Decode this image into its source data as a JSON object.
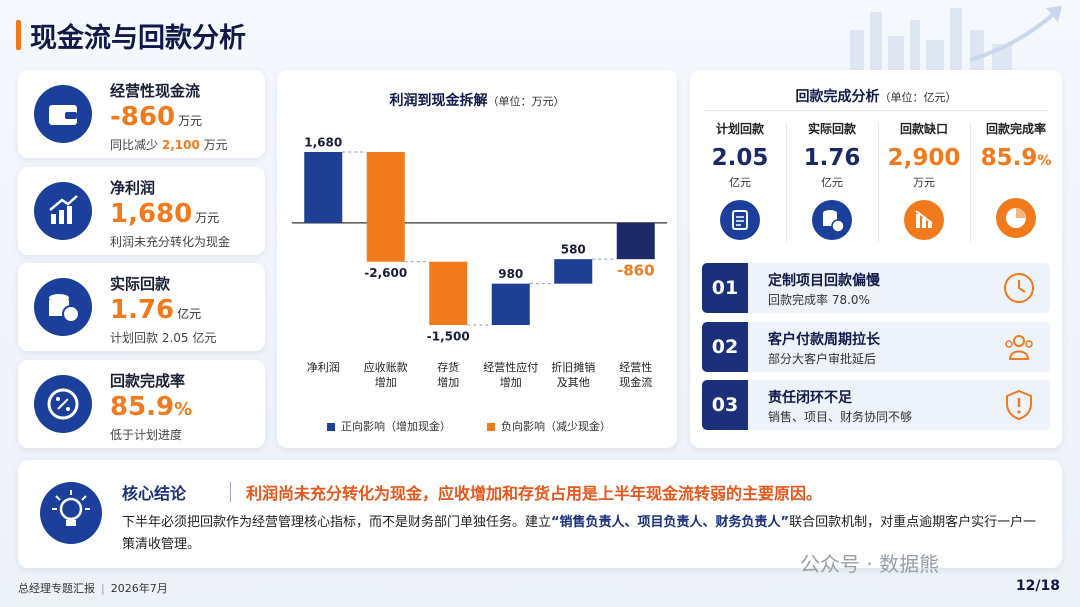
{
  "header": {
    "title": "现金流与回款分析"
  },
  "kpi_cards": [
    {
      "title": "经营性现金流",
      "value": "-860",
      "unit": "万元",
      "note": "同比减少",
      "note_value": "2,100",
      "note_unit": "万元"
    },
    {
      "title": "净利润",
      "value": "1,680",
      "unit": "万元",
      "note": "利润未充分转化为现金"
    },
    {
      "title": "实际回款",
      "value": "1.76",
      "unit": "亿元",
      "note": "计划回款 2.05 亿元"
    },
    {
      "title": "回款完成率",
      "value": "85.9",
      "unit": "%",
      "note": "低于计划进度"
    }
  ],
  "chart_data": {
    "type": "waterfall",
    "title": "利润到现金拆解",
    "subtitle": "（单位：万元）",
    "categories": [
      "净利润",
      "应收账款\n增加",
      "存货\n增加",
      "经营性应付\n增加",
      "折旧摊销\n及其他",
      "经营性\n现金流"
    ],
    "values": [
      1680,
      -2600,
      -1500,
      980,
      580,
      -860
    ],
    "value_labels": [
      "1,680",
      "-2,600",
      "-1,500",
      "980",
      "580",
      "-860"
    ],
    "is_total": [
      false,
      false,
      false,
      false,
      false,
      true
    ],
    "legend": [
      {
        "name": "正向影响（增加现金）",
        "color": "#1f3f95"
      },
      {
        "name": "负向影响（减少现金）",
        "color": "#f07a1c"
      }
    ],
    "total_color": "#1b2a66",
    "total_label_color": "#f07a1c"
  },
  "recovery": {
    "title": "回款完成分析",
    "unit_note": "（单位：亿元）",
    "metrics": [
      {
        "label": "计划回款",
        "value": "2.05",
        "unit": "亿元"
      },
      {
        "label": "实际回款",
        "value": "1.76",
        "unit": "亿元"
      },
      {
        "label": "回款缺口",
        "value": "2,900",
        "unit": "万元"
      },
      {
        "label": "回款完成率",
        "value": "85.9",
        "unit": "%"
      }
    ],
    "issues": [
      {
        "number": "01",
        "title": "定制项目回款偏慢",
        "detail": "回款完成率 78.0%"
      },
      {
        "number": "02",
        "title": "客户付款周期拉长",
        "detail": "部分大客户审批延后"
      },
      {
        "number": "03",
        "title": "责任闭环不足",
        "detail": "销售、项目、财务协同不够"
      }
    ]
  },
  "conclusion": {
    "label": "核心结论",
    "headline": "利润尚未充分转化为现金，应收增加和存货占用是上半年现金流转弱的主要原因。",
    "body_before": "下半年必须把回款作为经营管理核心指标，而不是财务部门单独任务。建立",
    "body_highlight": "“销售负责人、项目负责人、财务负责人”",
    "body_after": "联合回款机制，对重点逾期客户实行一户一策清收管理。"
  },
  "watermark": "公众号 · 数据熊",
  "footer": {
    "left": "总经理专题汇报",
    "date": "2026年7月",
    "page": "12/18"
  }
}
